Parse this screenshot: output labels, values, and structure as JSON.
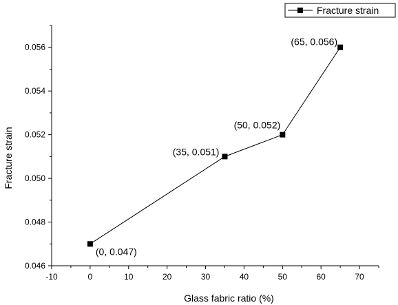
{
  "chart_data": {
    "type": "line",
    "xlabel": "Glass fabric ratio (%)",
    "ylabel": "Fracture strain",
    "xlim": [
      -10,
      75
    ],
    "ylim": [
      0.046,
      0.057
    ],
    "xticks": [
      -10,
      0,
      10,
      20,
      30,
      40,
      50,
      60,
      70
    ],
    "yticks": [
      0.046,
      0.048,
      0.05,
      0.052,
      0.054,
      0.056
    ],
    "ytick_labels": [
      "0.046",
      "0.048",
      "0.050",
      "0.052",
      "0.054",
      "0.056"
    ],
    "series": [
      {
        "name": "Fracture strain",
        "marker": "square",
        "x": [
          0,
          35,
          50,
          65
        ],
        "y": [
          0.047,
          0.051,
          0.052,
          0.056
        ],
        "labels": [
          "(0, 0.047)",
          "(35, 0.051)",
          "(50, 0.052)",
          "(65, 0.056)"
        ]
      }
    ],
    "legend": {
      "position": "top-right",
      "entries": [
        "Fracture strain"
      ]
    },
    "grid": false
  }
}
